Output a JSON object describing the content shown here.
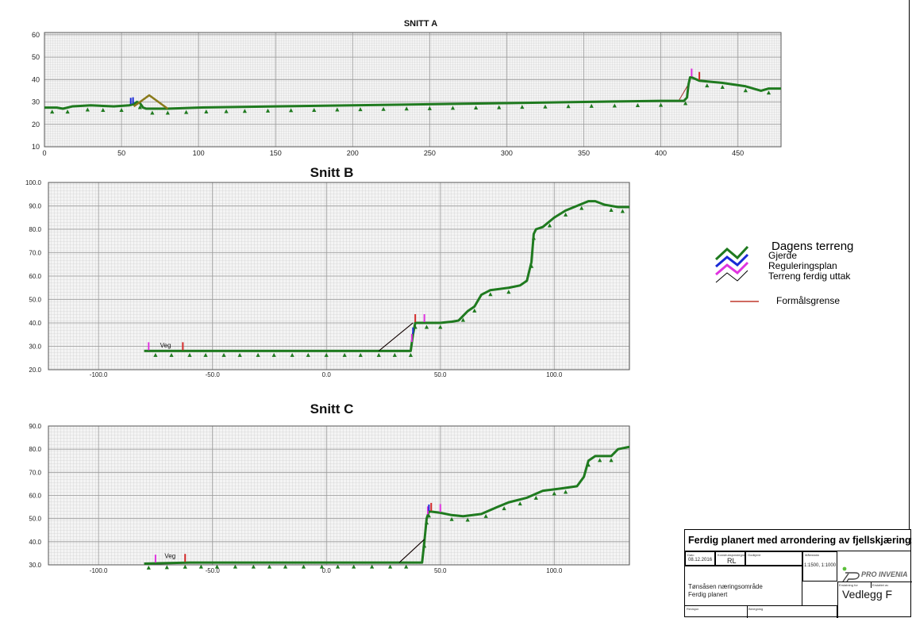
{
  "chart_data": [
    {
      "type": "line",
      "title": "SNITT A",
      "xlim": [
        0,
        478
      ],
      "ylim": [
        10,
        61
      ],
      "xticks": [
        0,
        50,
        100,
        150,
        200,
        250,
        300,
        350,
        400,
        450
      ],
      "yticks": [
        10,
        20,
        30,
        40,
        50,
        60
      ],
      "xtick_labels": [
        "0",
        "50",
        "100",
        "150",
        "200",
        "250",
        "300",
        "350",
        "400",
        "450"
      ],
      "ytick_labels": [
        "10",
        "20",
        "30",
        "40",
        "50",
        "60"
      ],
      "series": [
        {
          "name": "Dagens terreng",
          "color": "#1f7a1f",
          "x": [
            0,
            8,
            12,
            18,
            30,
            45,
            55,
            58,
            60,
            62,
            64,
            66,
            70,
            80,
            100,
            150,
            200,
            250,
            300,
            350,
            400,
            415,
            417,
            418,
            419,
            420,
            425,
            440,
            455,
            465,
            470,
            478
          ],
          "y": [
            27.5,
            27.5,
            27,
            28,
            28.5,
            28,
            28.5,
            29,
            30,
            29.5,
            27.5,
            27,
            27,
            27,
            27.5,
            28,
            28.5,
            29,
            29.5,
            30,
            30.5,
            30.5,
            32,
            38,
            41,
            41,
            39.5,
            38.5,
            37,
            35,
            36,
            36
          ]
        },
        {
          "name": "Terreng ferdig uttak",
          "color": "#8a7a1a",
          "x": [
            58,
            68,
            80
          ],
          "y": [
            28,
            33,
            27
          ]
        }
      ],
      "triangle_markers_x": [
        5,
        15,
        28,
        38,
        50,
        62,
        70,
        80,
        92,
        105,
        118,
        130,
        145,
        160,
        175,
        190,
        205,
        220,
        235,
        250,
        265,
        280,
        295,
        310,
        325,
        340,
        355,
        370,
        385,
        400,
        416,
        430,
        440,
        455,
        470
      ],
      "boundary_lines": [
        {
          "x": [
            412,
            418
          ],
          "y": [
            31,
            38
          ]
        }
      ],
      "boundary_marks_x": [
        420,
        425
      ],
      "fence_marks_x": [
        56,
        57.5
      ]
    },
    {
      "type": "line",
      "title": "Snitt B",
      "xlim": [
        -122,
        133
      ],
      "ylim": [
        20,
        100
      ],
      "xticks": [
        -100,
        -50,
        0,
        50,
        100
      ],
      "yticks": [
        20,
        30,
        40,
        50,
        60,
        70,
        80,
        90,
        100
      ],
      "xtick_labels": [
        "-100.0",
        "-50.0",
        "0.0",
        "50.0",
        "100.0"
      ],
      "ytick_labels": [
        "20.0",
        "30.0",
        "40.0",
        "50.0",
        "60.0",
        "70.0",
        "80.0",
        "90.0",
        "100.0"
      ],
      "series": [
        {
          "name": "Dagens terreng",
          "color": "#1f7a1f",
          "x": [
            -80,
            -50,
            -20,
            0,
            20,
            33,
            37,
            38,
            39,
            42,
            50,
            55,
            58,
            62,
            65,
            68,
            72,
            80,
            85,
            88,
            90,
            91,
            92,
            95,
            100,
            105,
            110,
            115,
            118,
            122,
            128,
            133
          ],
          "y": [
            28,
            28,
            28,
            28,
            28,
            28,
            28,
            35,
            40,
            40,
            40,
            40.5,
            41,
            45,
            47,
            52,
            54,
            55,
            56,
            58,
            66,
            78,
            80,
            81,
            85,
            88,
            90,
            92,
            92,
            90.5,
            89.5,
            89.5
          ]
        },
        {
          "name": "Terreng ferdig uttak",
          "color": "#000000",
          "x": [
            23,
            38
          ],
          "y": [
            28,
            40
          ]
        }
      ],
      "triangle_markers_x": [
        -75,
        -68,
        -60,
        -53,
        -45,
        -38,
        -30,
        -23,
        -15,
        -8,
        0,
        8,
        15,
        23,
        30,
        37,
        39,
        44,
        50,
        60,
        65,
        72,
        80,
        90,
        91,
        98,
        105,
        112,
        125,
        130
      ],
      "annotations": [
        {
          "text": "Veg",
          "x": -73,
          "y": 29.5
        }
      ],
      "boundary_lines": [
        {
          "x": [
            23,
            38
          ],
          "y": [
            28,
            40
          ]
        }
      ],
      "boundary_marks_x": [
        -78,
        -63,
        37.5,
        39,
        43
      ],
      "fence_marks_x": [
        38
      ]
    },
    {
      "type": "line",
      "title": "Snitt C",
      "xlim": [
        -122,
        133
      ],
      "ylim": [
        30,
        90
      ],
      "xticks": [
        -100,
        -50,
        0,
        50,
        100
      ],
      "yticks": [
        30,
        40,
        50,
        60,
        70,
        80,
        90
      ],
      "xtick_labels": [
        "-100.0",
        "-50.0",
        "0.0",
        "50.0",
        "100.0"
      ],
      "ytick_labels": [
        "30.0",
        "40.0",
        "50.0",
        "60.0",
        "70.0",
        "80.0",
        "90.0"
      ],
      "series": [
        {
          "name": "Dagens terreng",
          "color": "#1f7a1f",
          "x": [
            -80,
            -60,
            -40,
            -20,
            0,
            20,
            35,
            42,
            43,
            44,
            45,
            46,
            50,
            55,
            60,
            68,
            75,
            80,
            88,
            95,
            103,
            110,
            113,
            115,
            118,
            125,
            128,
            133
          ],
          "y": [
            30.5,
            31,
            31,
            31,
            31,
            31,
            31,
            31,
            40,
            50,
            53,
            53,
            52.5,
            51.5,
            51,
            52,
            55,
            57,
            59,
            62,
            63,
            64,
            68,
            75,
            77,
            77,
            80,
            81
          ]
        },
        {
          "name": "Terreng ferdig uttak",
          "color": "#000000",
          "x": [
            32,
            43
          ],
          "y": [
            31,
            41
          ]
        }
      ],
      "triangle_markers_x": [
        -78,
        -70,
        -62,
        -55,
        -48,
        -40,
        -32,
        -25,
        -18,
        -10,
        -2,
        5,
        12,
        20,
        28,
        35,
        43,
        44,
        45,
        55,
        62,
        70,
        78,
        85,
        92,
        100,
        105,
        115,
        120,
        125
      ],
      "annotations": [
        {
          "text": "Veg",
          "x": -71,
          "y": 33
        }
      ],
      "boundary_lines": [
        {
          "x": [
            32,
            43
          ],
          "y": [
            31,
            41
          ]
        }
      ],
      "boundary_marks_x": [
        -75,
        -62,
        44.5,
        46,
        50
      ],
      "fence_marks_x": [
        45
      ]
    }
  ],
  "legend": {
    "items": [
      {
        "label": "Dagens terreng",
        "color": "#1f7a1f"
      },
      {
        "label": "Gjerde",
        "color": "#1a2bd6"
      },
      {
        "label": "Reguleringsplan",
        "color": "#e033e0"
      },
      {
        "label": "Terreng  ferdig uttak",
        "color": "#000000"
      },
      {
        "label": "Formålsgrense",
        "color": "#c0392b"
      }
    ]
  },
  "title_block": {
    "title": "Ferdig planert med arrondering av fjellskjæring:",
    "date_label": "Dato",
    "date_value": "08.12.2016",
    "drawn_label": "Konstruksjonstegnet",
    "drawn_value": "RL",
    "checked_label": "Godkjent",
    "scale_label": "Målestokk",
    "scale_value": "1:1500, 1:1000",
    "project_line1": "Tønsåsen næringsområde",
    "project_line2": "Ferdig planert",
    "drawing_no_label": "Erstatning for",
    "replaced_label": "Erstattet av",
    "sheet": "Vedlegg F",
    "revision_label": "Revisjon",
    "description_label": "Beregning",
    "logo_text": "PRO INVENIA"
  }
}
